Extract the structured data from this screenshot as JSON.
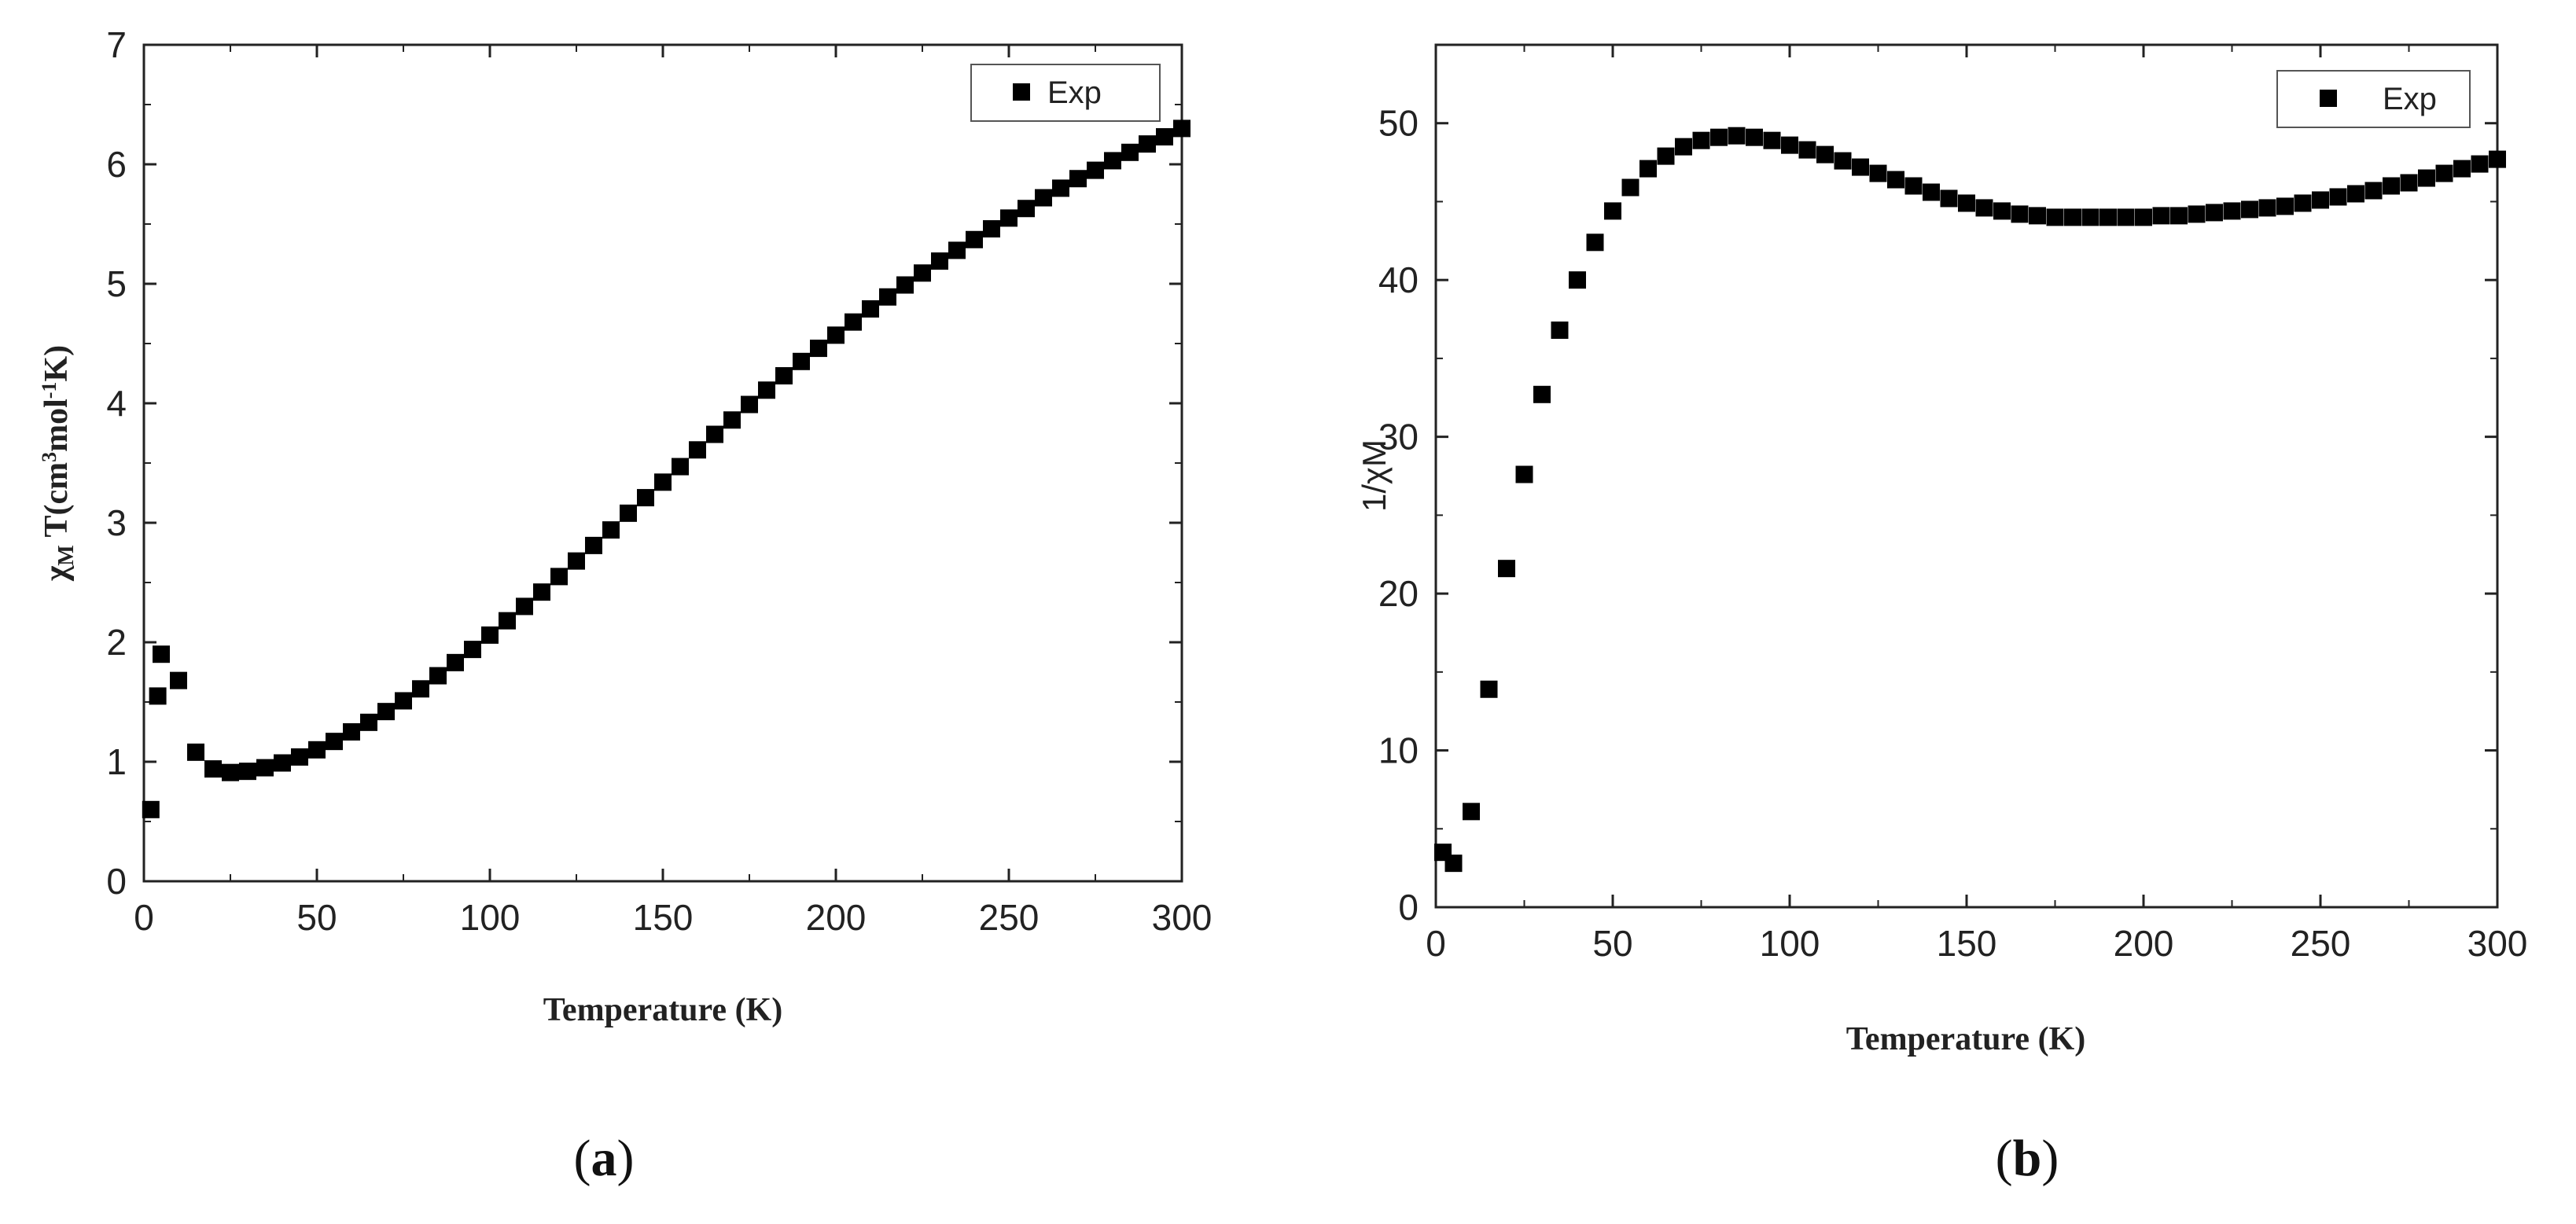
{
  "chart_data": [
    {
      "type": "scatter",
      "panel": "a",
      "caption_open": "(",
      "caption_letter": "a",
      "caption_close": ")",
      "xlabel": "Temperature (K)",
      "ylabel": {
        "chi": "χ",
        "sub_m": "M",
        "t_open": " T(cm",
        "sup3": "3",
        "mol": "mol",
        "supm1": "-1",
        "k_close": "K)"
      },
      "xlim": [
        0,
        300
      ],
      "ylim": [
        0,
        7
      ],
      "xticks": [
        0,
        50,
        100,
        150,
        200,
        250,
        300
      ],
      "yticks": [
        0,
        1,
        2,
        3,
        4,
        5,
        6,
        7
      ],
      "legend": {
        "label": "Exp",
        "position": "top-right"
      },
      "series": [
        {
          "name": "Exp",
          "x": [
            2,
            4,
            5,
            10,
            15,
            20,
            25,
            30,
            35,
            40,
            45,
            50,
            55,
            60,
            65,
            70,
            75,
            80,
            85,
            90,
            95,
            100,
            105,
            110,
            115,
            120,
            125,
            130,
            135,
            140,
            145,
            150,
            155,
            160,
            165,
            170,
            175,
            180,
            185,
            190,
            195,
            200,
            205,
            210,
            215,
            220,
            225,
            230,
            235,
            240,
            245,
            250,
            255,
            260,
            265,
            270,
            275,
            280,
            285,
            290,
            295,
            300
          ],
          "y": [
            0.6,
            1.55,
            1.9,
            1.68,
            1.08,
            0.94,
            0.91,
            0.92,
            0.95,
            0.99,
            1.04,
            1.1,
            1.17,
            1.25,
            1.33,
            1.42,
            1.51,
            1.61,
            1.72,
            1.83,
            1.94,
            2.06,
            2.18,
            2.3,
            2.42,
            2.55,
            2.68,
            2.81,
            2.94,
            3.08,
            3.21,
            3.34,
            3.47,
            3.61,
            3.74,
            3.86,
            3.99,
            4.11,
            4.23,
            4.35,
            4.46,
            4.57,
            4.68,
            4.79,
            4.89,
            4.99,
            5.09,
            5.19,
            5.28,
            5.37,
            5.46,
            5.55,
            5.63,
            5.72,
            5.8,
            5.88,
            5.95,
            6.03,
            6.1,
            6.17,
            6.23,
            6.3
          ]
        }
      ]
    },
    {
      "type": "scatter",
      "panel": "b",
      "caption_open": "(",
      "caption_letter": "b",
      "caption_close": ")",
      "xlabel": "Temperature (K)",
      "ylabel": "1/χM",
      "xlim": [
        0,
        300
      ],
      "ylim": [
        0,
        55
      ],
      "xticks": [
        0,
        50,
        100,
        150,
        200,
        250,
        300
      ],
      "yticks": [
        0,
        10,
        20,
        30,
        40,
        50
      ],
      "legend": {
        "label": "Exp",
        "position": "top-right"
      },
      "series": [
        {
          "name": "Exp",
          "x": [
            2,
            5,
            10,
            15,
            20,
            25,
            30,
            35,
            40,
            45,
            50,
            55,
            60,
            65,
            70,
            75,
            80,
            85,
            90,
            95,
            100,
            105,
            110,
            115,
            120,
            125,
            130,
            135,
            140,
            145,
            150,
            155,
            160,
            165,
            170,
            175,
            180,
            185,
            190,
            195,
            200,
            205,
            210,
            215,
            220,
            225,
            230,
            235,
            240,
            245,
            250,
            255,
            260,
            265,
            270,
            275,
            280,
            285,
            290,
            295,
            300
          ],
          "y": [
            3.5,
            2.8,
            6.1,
            13.9,
            21.6,
            27.6,
            32.7,
            36.8,
            40.0,
            42.4,
            44.4,
            45.9,
            47.1,
            47.9,
            48.5,
            48.9,
            49.1,
            49.2,
            49.1,
            48.9,
            48.6,
            48.3,
            48.0,
            47.6,
            47.2,
            46.8,
            46.4,
            46.0,
            45.6,
            45.2,
            44.9,
            44.6,
            44.4,
            44.2,
            44.1,
            44.0,
            44.0,
            44.0,
            44.0,
            44.0,
            44.0,
            44.1,
            44.1,
            44.2,
            44.3,
            44.4,
            44.5,
            44.6,
            44.7,
            44.9,
            45.1,
            45.3,
            45.5,
            45.7,
            46.0,
            46.2,
            46.5,
            46.8,
            47.1,
            47.4,
            47.7
          ]
        }
      ]
    }
  ]
}
